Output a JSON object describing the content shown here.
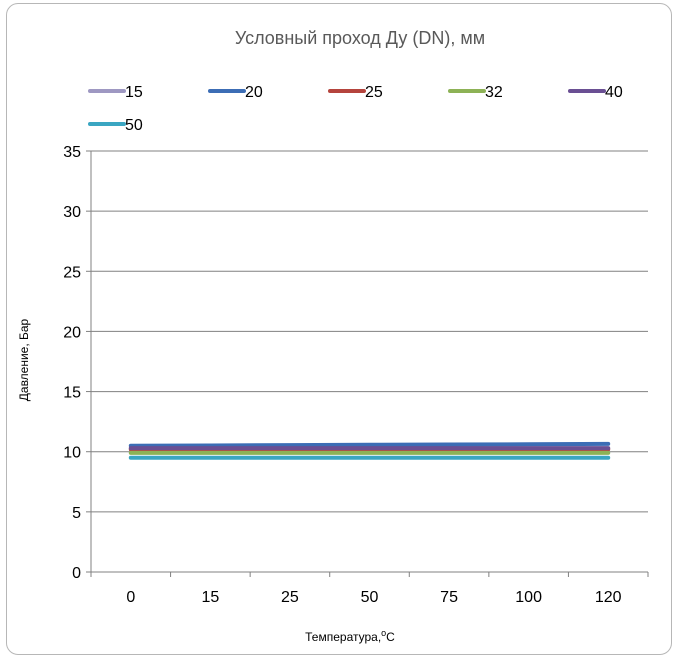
{
  "chart_data": {
    "type": "line",
    "title": "Условный проход Ду (DN), мм",
    "xlabel": "Температура,",
    "xlabel_sup": "o",
    "xlabel_unit": "С",
    "ylabel": "Давление, Бар",
    "ylim": [
      0,
      35
    ],
    "yticks": [
      0,
      5,
      10,
      15,
      20,
      25,
      30,
      35
    ],
    "categories": [
      "0",
      "15",
      "25",
      "50",
      "75",
      "100",
      "120"
    ],
    "grid": true,
    "legend_position": "top",
    "series": [
      {
        "name": "15",
        "color": "#9e98c2",
        "values": [
          10.0,
          10.0,
          10.0,
          10.0,
          10.0,
          10.0,
          10.0
        ]
      },
      {
        "name": "20",
        "color": "#3c6db5",
        "values": [
          10.5,
          10.52,
          10.55,
          10.58,
          10.6,
          10.62,
          10.65
        ]
      },
      {
        "name": "25",
        "color": "#b5443d",
        "values": [
          10.2,
          10.2,
          10.2,
          10.2,
          10.2,
          10.2,
          10.2
        ]
      },
      {
        "name": "32",
        "color": "#8db256",
        "values": [
          9.9,
          9.9,
          9.9,
          9.9,
          9.9,
          9.9,
          9.9
        ]
      },
      {
        "name": "40",
        "color": "#6a4f93",
        "values": [
          10.3,
          10.3,
          10.3,
          10.3,
          10.3,
          10.3,
          10.3
        ]
      },
      {
        "name": "50",
        "color": "#3aa6c2",
        "values": [
          9.5,
          9.5,
          9.5,
          9.5,
          9.5,
          9.5,
          9.5
        ]
      }
    ]
  }
}
